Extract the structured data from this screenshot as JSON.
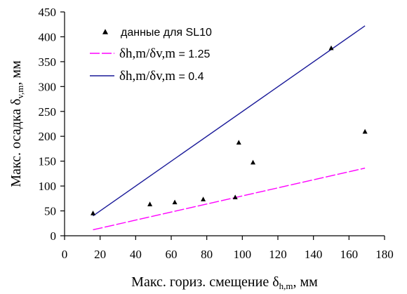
{
  "chart_data": {
    "type": "scatter",
    "xlabel": {
      "main": "Макс. гориз. смещение δ",
      "sub": "h,m",
      "unit": ", мм"
    },
    "ylabel": {
      "main": "Макс. осадка δ",
      "sub": "v,m",
      "unit": ", мм"
    },
    "xlim": [
      0,
      180
    ],
    "ylim": [
      0,
      450
    ],
    "xticks": [
      "0",
      "20",
      "40",
      "60",
      "80",
      "100",
      "120",
      "140",
      "160",
      "180"
    ],
    "yticks": [
      "0",
      "50",
      "100",
      "150",
      "200",
      "250",
      "300",
      "350",
      "400",
      "450"
    ],
    "grid": false,
    "legend_position": "top-left",
    "points": {
      "name": "данные для SL10",
      "marker": "triangle",
      "color": "#000000",
      "x": [
        16,
        48,
        62,
        78,
        96,
        98,
        106,
        150,
        169
      ],
      "y": [
        46,
        64,
        68,
        74,
        78,
        188,
        148,
        378,
        210
      ]
    },
    "lines": [
      {
        "name_prefix": "δh,m/δv,m",
        "name_value": "= 1.25",
        "style": "dashed",
        "color": "#ff00ff",
        "x": [
          16,
          169
        ],
        "y": [
          12,
          136
        ]
      },
      {
        "name_prefix": "δh,m/δv,m",
        "name_value": "= 0.4",
        "style": "solid",
        "color": "#1a1a99",
        "x": [
          16,
          169
        ],
        "y": [
          40,
          422
        ]
      }
    ]
  }
}
